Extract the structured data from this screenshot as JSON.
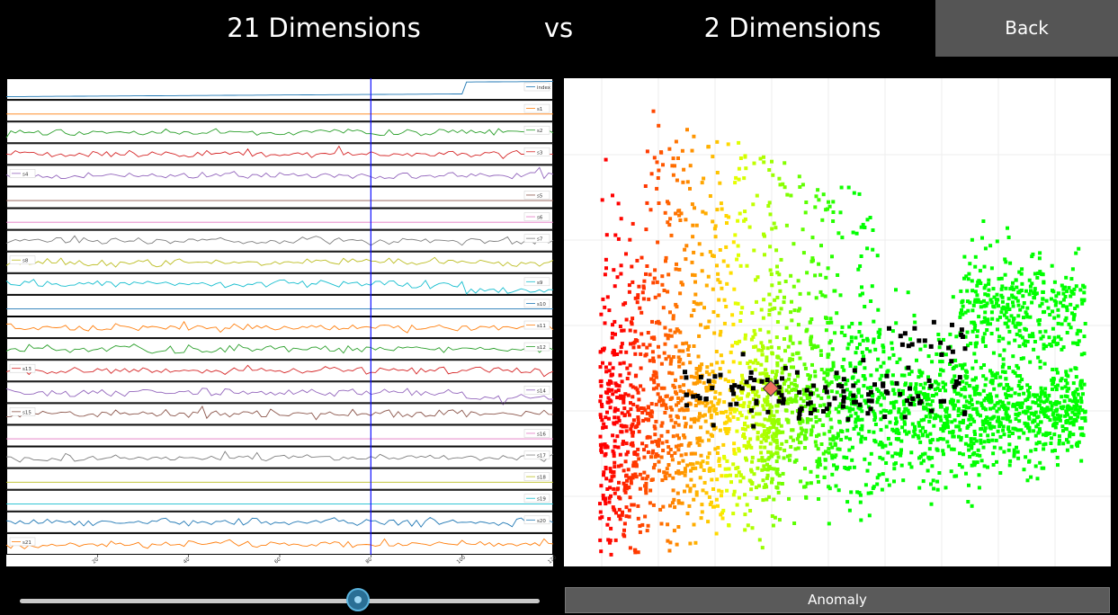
{
  "header": {
    "left_title": "21 Dimensions",
    "vs_label": "vs",
    "right_title": "2 Dimensions",
    "back_label": "Back"
  },
  "left_chart": {
    "chart_data": {
      "type": "line",
      "series": [
        {
          "name": "index",
          "color": "#1f77b4"
        },
        {
          "name": "s1",
          "color": "#ff7f0e"
        },
        {
          "name": "s2",
          "color": "#2ca02c"
        },
        {
          "name": "s3",
          "color": "#d62728"
        },
        {
          "name": "s4",
          "color": "#9467bd"
        },
        {
          "name": "s5",
          "color": "#8c564b"
        },
        {
          "name": "s6",
          "color": "#e377c2"
        },
        {
          "name": "s7",
          "color": "#7f7f7f"
        },
        {
          "name": "s8",
          "color": "#bcbd22"
        },
        {
          "name": "s9",
          "color": "#17becf"
        },
        {
          "name": "s10",
          "color": "#1f77b4"
        },
        {
          "name": "s11",
          "color": "#ff7f0e"
        },
        {
          "name": "s12",
          "color": "#2ca02c"
        },
        {
          "name": "s13",
          "color": "#d62728"
        },
        {
          "name": "s14",
          "color": "#9467bd"
        },
        {
          "name": "s15",
          "color": "#8c564b"
        },
        {
          "name": "s16",
          "color": "#e377c2"
        },
        {
          "name": "s17",
          "color": "#7f7f7f"
        },
        {
          "name": "s18",
          "color": "#bcbd22"
        },
        {
          "name": "s19",
          "color": "#17becf"
        },
        {
          "name": "s20",
          "color": "#1f77b4"
        },
        {
          "name": "s21",
          "color": "#ff7f0e"
        }
      ],
      "x_ticks": [
        "20",
        "40",
        "60",
        "80",
        "100",
        "120"
      ],
      "xlim": [
        0,
        120
      ],
      "cursor_x": 80
    }
  },
  "right_chart": {
    "chart_data": {
      "type": "scatter",
      "colormap": [
        "#ff0000",
        "#00ff00"
      ],
      "highlight_color": "#000000",
      "marker_color": "#f07060"
    }
  },
  "slider": {
    "value": 0.65
  },
  "anomaly_label": "Anomaly"
}
